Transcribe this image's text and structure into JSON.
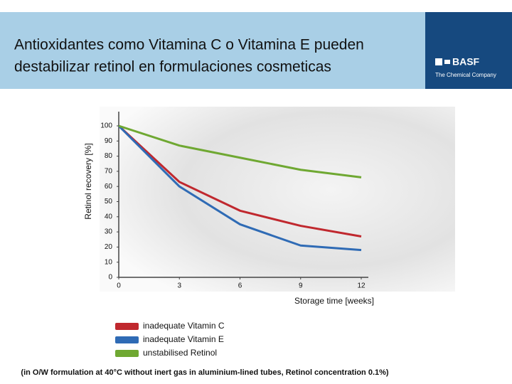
{
  "header": {
    "title": [
      "Antioxidantes como Vitamina C o Vitamina E pueden",
      "destabilizar retinol en formulaciones cosmeticas"
    ],
    "logo": {
      "name": "BASF",
      "tagline": "The Chemical Company"
    }
  },
  "chart_data": {
    "type": "line",
    "y_label": "Retinol recovery [%]",
    "x_label": "Storage time [weeks]",
    "x": [
      0,
      3,
      6,
      9,
      12
    ],
    "series": [
      {
        "name": "inadequate Vitamin C",
        "color": "#c0282e",
        "values": [
          100,
          63,
          44,
          34,
          27
        ]
      },
      {
        "name": "inadequate Vitamin E",
        "color": "#2f6bb5",
        "values": [
          100,
          60,
          35,
          21,
          18
        ]
      },
      {
        "name": "unstabilised Retinol",
        "color": "#6fa832",
        "values": [
          100,
          87,
          79,
          71,
          66
        ]
      }
    ],
    "xlim": [
      0,
      12
    ],
    "ylim": [
      0,
      100
    ],
    "xticks": [
      0,
      3,
      6,
      9,
      12
    ],
    "yticks": [
      0,
      10,
      20,
      30,
      40,
      50,
      60,
      70,
      80,
      90,
      100
    ],
    "footnote": "(in O/W formulation at 40°C without inert gas in aluminium-lined tubes, Retinol concentration 0.1%)"
  }
}
